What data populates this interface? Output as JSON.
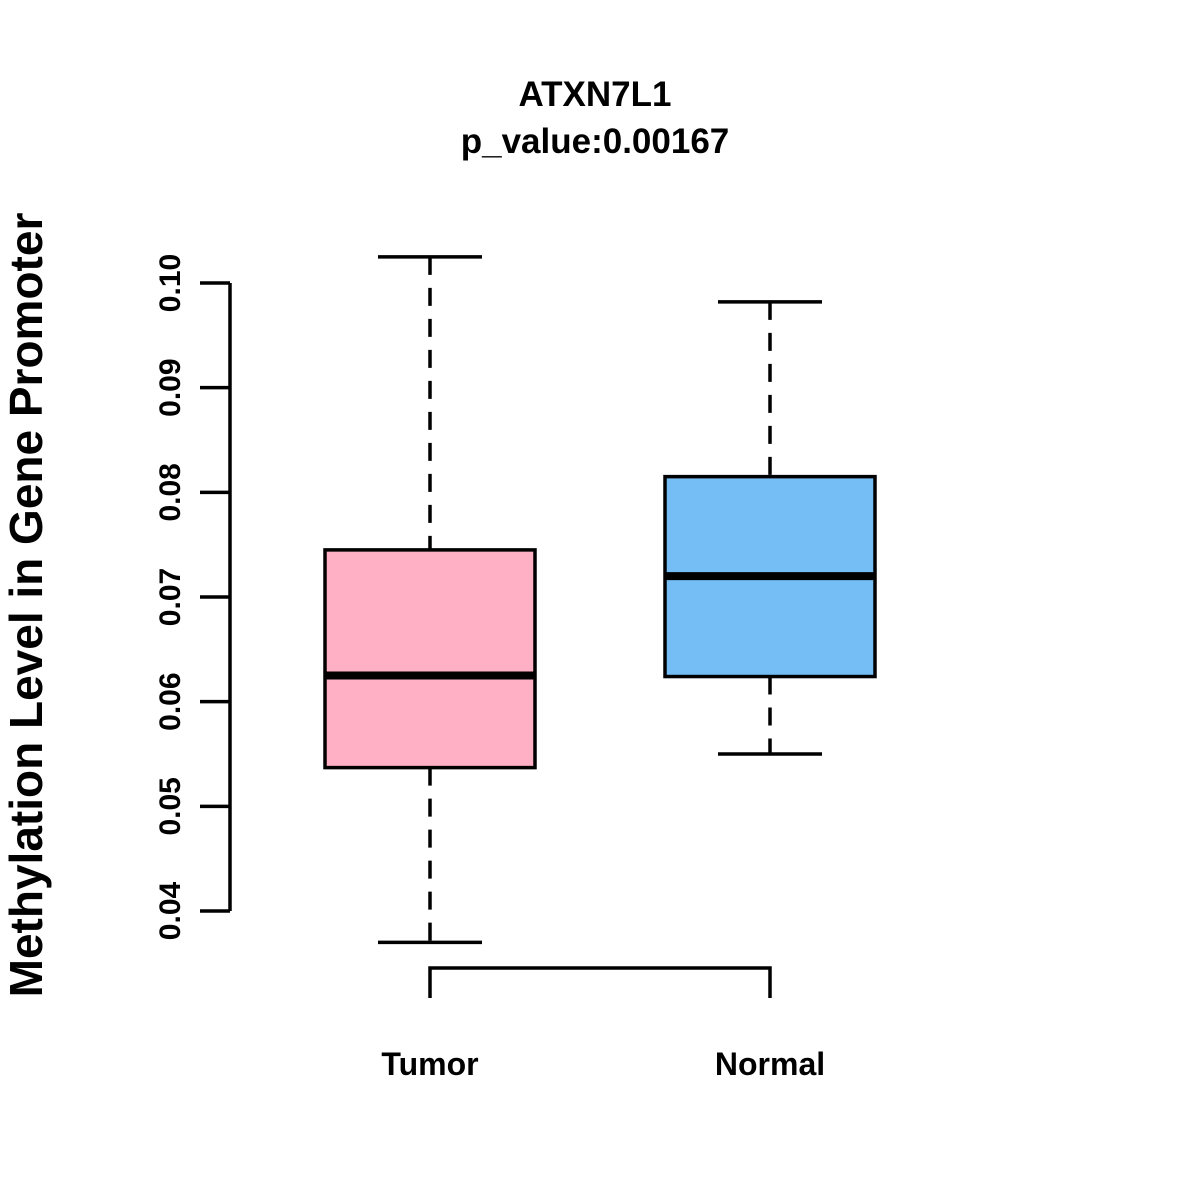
{
  "title": {
    "line1": "ATXN7L1",
    "line2": "p_value:0.00167"
  },
  "chart_data": {
    "type": "boxplot",
    "title": "ATXN7L1",
    "subtitle": "p_value:0.00167",
    "p_value": "0.00167",
    "ylabel": "Methylation Level in Gene Promoter",
    "xlabel": "",
    "ylim": [
      0.04,
      0.1
    ],
    "y_tick_values": [
      0.04,
      0.05,
      0.06,
      0.07,
      0.08,
      0.09,
      0.1
    ],
    "y_tick_labels": [
      "0.04",
      "0.05",
      "0.06",
      "0.07",
      "0.08",
      "0.09",
      "0.10"
    ],
    "grid": false,
    "legend": "none",
    "categories": [
      "Tumor",
      "Normal"
    ],
    "series": [
      {
        "name": "Tumor",
        "whisker_low": 0.037,
        "q1": 0.0537,
        "median": 0.0625,
        "q3": 0.0745,
        "whisker_high": 0.1025,
        "fill_color": "#FFB0C4"
      },
      {
        "name": "Normal",
        "whisker_low": 0.055,
        "q1": 0.0624,
        "median": 0.072,
        "q3": 0.0815,
        "whisker_high": 0.0982,
        "fill_color": "#74BEF5"
      }
    ]
  },
  "colors": {
    "stroke": "#000000",
    "background": "#ffffff",
    "tumor_fill": "#FFB0C4",
    "normal_fill": "#74BEF5"
  }
}
